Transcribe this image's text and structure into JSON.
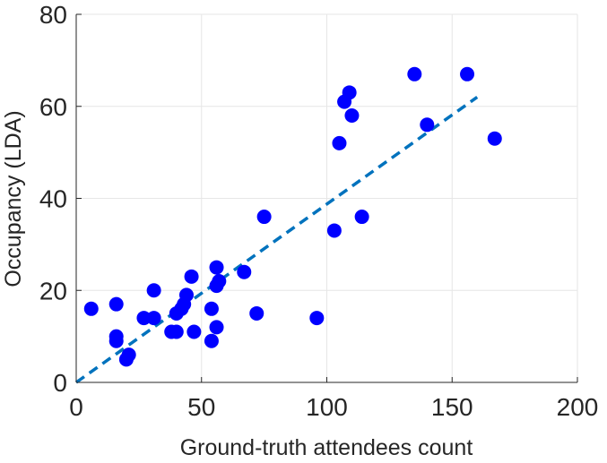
{
  "chart_data": {
    "type": "scatter",
    "title": "",
    "xlabel": "Ground-truth attendees count",
    "ylabel": "Occupancy (LDA)",
    "xlim": [
      0,
      200
    ],
    "ylim": [
      0,
      80
    ],
    "x_ticks": [
      0,
      50,
      100,
      150,
      200
    ],
    "y_ticks": [
      0,
      20,
      40,
      60,
      80
    ],
    "grid": true,
    "legend": "none",
    "series": [
      {
        "marker_color": "#0000ff",
        "points": [
          {
            "x": 6,
            "y": 16
          },
          {
            "x": 16,
            "y": 17
          },
          {
            "x": 16,
            "y": 10
          },
          {
            "x": 16,
            "y": 9
          },
          {
            "x": 20,
            "y": 5
          },
          {
            "x": 21,
            "y": 6
          },
          {
            "x": 27,
            "y": 14
          },
          {
            "x": 31,
            "y": 14
          },
          {
            "x": 31,
            "y": 20
          },
          {
            "x": 38,
            "y": 11
          },
          {
            "x": 40,
            "y": 11
          },
          {
            "x": 40,
            "y": 15
          },
          {
            "x": 42,
            "y": 16
          },
          {
            "x": 43,
            "y": 17
          },
          {
            "x": 44,
            "y": 19
          },
          {
            "x": 46,
            "y": 23
          },
          {
            "x": 47,
            "y": 11
          },
          {
            "x": 54,
            "y": 16
          },
          {
            "x": 54,
            "y": 9
          },
          {
            "x": 56,
            "y": 12
          },
          {
            "x": 56,
            "y": 21
          },
          {
            "x": 56,
            "y": 25
          },
          {
            "x": 57,
            "y": 22
          },
          {
            "x": 67,
            "y": 24
          },
          {
            "x": 72,
            "y": 15
          },
          {
            "x": 75,
            "y": 36
          },
          {
            "x": 96,
            "y": 14
          },
          {
            "x": 103,
            "y": 33
          },
          {
            "x": 105,
            "y": 52
          },
          {
            "x": 107,
            "y": 61
          },
          {
            "x": 109,
            "y": 63
          },
          {
            "x": 110,
            "y": 58
          },
          {
            "x": 114,
            "y": 36
          },
          {
            "x": 135,
            "y": 67
          },
          {
            "x": 140,
            "y": 56
          },
          {
            "x": 156,
            "y": 67
          },
          {
            "x": 167,
            "y": 53
          }
        ]
      }
    ],
    "fit_line": {
      "style": "dashed",
      "color": "#0072bd",
      "x": [
        0,
        160
      ],
      "y": [
        0,
        62
      ]
    }
  }
}
